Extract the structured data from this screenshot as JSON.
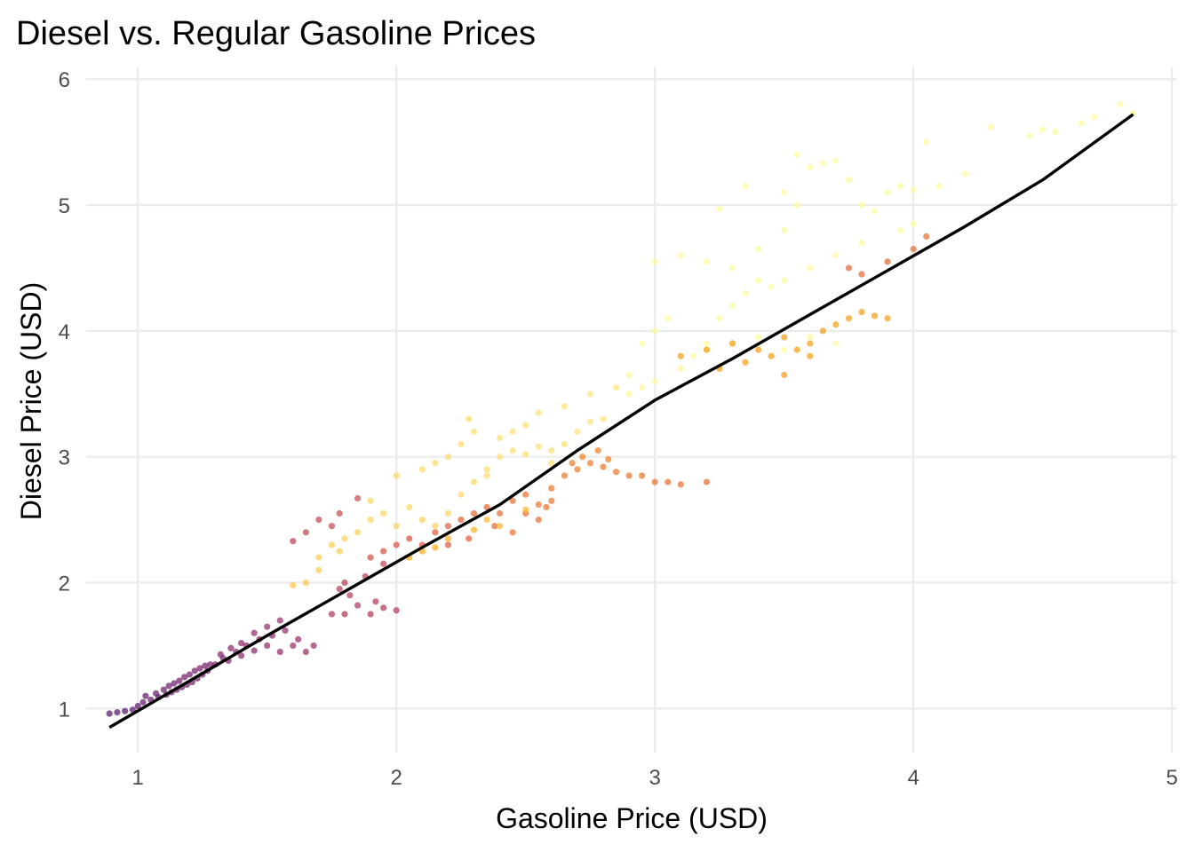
{
  "chart_data": {
    "type": "scatter",
    "title": "Diesel vs. Regular Gasoline Prices",
    "xlabel": "Gasoline Price (USD)",
    "ylabel": "Diesel Price (USD)",
    "xlim": [
      0.8,
      5.02
    ],
    "ylim": [
      0.65,
      6.1
    ],
    "xticks": [
      1,
      2,
      3,
      4,
      5
    ],
    "yticks": [
      1,
      2,
      3,
      4,
      5,
      6
    ],
    "x_tick_labels": [
      "1",
      "2",
      "3",
      "4",
      "5"
    ],
    "y_tick_labels": [
      "1",
      "2",
      "3",
      "4",
      "5",
      "6"
    ],
    "grid": true,
    "legend": "none",
    "colormap": [
      "#420a68",
      "#932667",
      "#dd513a",
      "#fca50a",
      "#fcffa4"
    ],
    "trend_line": {
      "x": [
        0.89,
        1.2,
        1.5,
        1.8,
        2.1,
        2.4,
        2.7,
        3.0,
        3.3,
        3.6,
        3.9,
        4.2,
        4.5,
        4.85
      ],
      "y": [
        0.85,
        1.22,
        1.58,
        1.93,
        2.28,
        2.62,
        3.05,
        3.45,
        3.78,
        4.13,
        4.48,
        4.83,
        5.2,
        5.72
      ]
    },
    "points": [
      [
        0.89,
        0.96,
        0.05
      ],
      [
        0.92,
        0.97,
        0.05
      ],
      [
        0.95,
        0.98,
        0.06
      ],
      [
        0.98,
        0.99,
        0.06
      ],
      [
        1.0,
        1.02,
        0.07
      ],
      [
        1.02,
        1.05,
        0.08
      ],
      [
        1.03,
        1.1,
        0.08
      ],
      [
        1.05,
        1.07,
        0.09
      ],
      [
        1.07,
        1.12,
        0.09
      ],
      [
        1.08,
        1.09,
        0.1
      ],
      [
        1.1,
        1.15,
        0.1
      ],
      [
        1.11,
        1.11,
        0.1
      ],
      [
        1.12,
        1.18,
        0.11
      ],
      [
        1.13,
        1.13,
        0.11
      ],
      [
        1.14,
        1.2,
        0.11
      ],
      [
        1.15,
        1.15,
        0.12
      ],
      [
        1.16,
        1.22,
        0.12
      ],
      [
        1.17,
        1.17,
        0.12
      ],
      [
        1.18,
        1.25,
        0.13
      ],
      [
        1.19,
        1.19,
        0.13
      ],
      [
        1.2,
        1.27,
        0.13
      ],
      [
        1.21,
        1.21,
        0.14
      ],
      [
        1.22,
        1.3,
        0.14
      ],
      [
        1.23,
        1.24,
        0.14
      ],
      [
        1.24,
        1.32,
        0.15
      ],
      [
        1.25,
        1.27,
        0.15
      ],
      [
        1.26,
        1.34,
        0.15
      ],
      [
        1.27,
        1.3,
        0.16
      ],
      [
        1.28,
        1.35,
        0.16
      ],
      [
        1.3,
        1.35,
        0.17
      ],
      [
        1.33,
        1.4,
        0.18
      ],
      [
        1.35,
        1.38,
        0.18
      ],
      [
        1.38,
        1.45,
        0.19
      ],
      [
        1.4,
        1.42,
        0.2
      ],
      [
        1.42,
        1.5,
        0.2
      ],
      [
        1.45,
        1.46,
        0.21
      ],
      [
        1.47,
        1.55,
        0.22
      ],
      [
        1.5,
        1.5,
        0.23
      ],
      [
        1.52,
        1.58,
        0.23
      ],
      [
        1.55,
        1.45,
        0.24
      ],
      [
        1.57,
        1.62,
        0.25
      ],
      [
        1.6,
        1.5,
        0.25
      ],
      [
        1.62,
        1.55,
        0.26
      ],
      [
        1.65,
        1.45,
        0.26
      ],
      [
        1.68,
        1.5,
        0.27
      ],
      [
        1.5,
        1.65,
        0.25
      ],
      [
        1.45,
        1.6,
        0.24
      ],
      [
        1.55,
        1.7,
        0.26
      ],
      [
        1.4,
        1.52,
        0.22
      ],
      [
        1.36,
        1.48,
        0.2
      ],
      [
        1.32,
        1.43,
        0.19
      ],
      [
        1.6,
        2.33,
        0.38
      ],
      [
        1.65,
        2.4,
        0.4
      ],
      [
        1.7,
        2.5,
        0.41
      ],
      [
        1.75,
        2.45,
        0.42
      ],
      [
        1.78,
        2.55,
        0.43
      ],
      [
        1.85,
        2.67,
        0.44
      ],
      [
        1.8,
        2.0,
        0.36
      ],
      [
        1.78,
        1.95,
        0.35
      ],
      [
        1.82,
        1.9,
        0.35
      ],
      [
        1.85,
        1.82,
        0.34
      ],
      [
        1.75,
        1.75,
        0.33
      ],
      [
        1.8,
        1.75,
        0.34
      ],
      [
        1.9,
        1.75,
        0.34
      ],
      [
        1.95,
        1.8,
        0.35
      ],
      [
        2.0,
        1.78,
        0.35
      ],
      [
        1.92,
        1.85,
        0.35
      ],
      [
        1.88,
        2.05,
        0.37
      ],
      [
        1.95,
        2.15,
        0.4
      ],
      [
        1.9,
        2.2,
        0.45
      ],
      [
        1.95,
        2.25,
        0.47
      ],
      [
        2.0,
        2.3,
        0.48
      ],
      [
        2.05,
        2.35,
        0.49
      ],
      [
        2.1,
        2.3,
        0.5
      ],
      [
        2.15,
        2.4,
        0.52
      ],
      [
        2.2,
        2.45,
        0.53
      ],
      [
        2.25,
        2.5,
        0.54
      ],
      [
        2.3,
        2.55,
        0.55
      ],
      [
        2.35,
        2.6,
        0.56
      ],
      [
        2.4,
        2.55,
        0.57
      ],
      [
        2.45,
        2.65,
        0.58
      ],
      [
        2.5,
        2.7,
        0.59
      ],
      [
        2.55,
        2.62,
        0.6
      ],
      [
        2.6,
        2.75,
        0.6
      ],
      [
        2.65,
        2.85,
        0.61
      ],
      [
        2.7,
        2.9,
        0.62
      ],
      [
        2.75,
        2.95,
        0.62
      ],
      [
        2.8,
        2.92,
        0.61
      ],
      [
        2.85,
        2.88,
        0.6
      ],
      [
        2.9,
        2.85,
        0.6
      ],
      [
        2.95,
        2.85,
        0.59
      ],
      [
        3.0,
        2.8,
        0.59
      ],
      [
        3.05,
        2.8,
        0.58
      ],
      [
        3.1,
        2.78,
        0.58
      ],
      [
        3.2,
        2.8,
        0.57
      ],
      [
        2.45,
        2.4,
        0.58
      ],
      [
        2.55,
        2.5,
        0.59
      ],
      [
        2.6,
        2.65,
        0.6
      ],
      [
        2.2,
        2.3,
        0.52
      ],
      [
        2.28,
        2.35,
        0.53
      ],
      [
        2.38,
        2.45,
        0.56
      ],
      [
        2.5,
        2.55,
        0.58
      ],
      [
        2.58,
        2.6,
        0.59
      ],
      [
        2.68,
        2.95,
        0.62
      ],
      [
        2.72,
        3.0,
        0.63
      ],
      [
        2.78,
        3.05,
        0.63
      ],
      [
        2.82,
        2.98,
        0.62
      ],
      [
        2.1,
        2.25,
        0.76
      ],
      [
        2.2,
        2.35,
        0.77
      ],
      [
        2.3,
        2.42,
        0.78
      ],
      [
        2.35,
        2.5,
        0.8
      ],
      [
        2.4,
        2.45,
        0.79
      ],
      [
        2.5,
        2.58,
        0.8
      ],
      [
        2.05,
        2.2,
        0.75
      ],
      [
        2.15,
        2.28,
        0.76
      ],
      [
        1.7,
        2.2,
        0.85
      ],
      [
        1.75,
        2.3,
        0.86
      ],
      [
        1.8,
        2.35,
        0.87
      ],
      [
        1.85,
        2.4,
        0.87
      ],
      [
        1.9,
        2.5,
        0.88
      ],
      [
        1.95,
        2.55,
        0.88
      ],
      [
        2.0,
        2.45,
        0.87
      ],
      [
        2.05,
        2.6,
        0.88
      ],
      [
        2.1,
        2.5,
        0.87
      ],
      [
        2.15,
        2.45,
        0.87
      ],
      [
        2.2,
        2.55,
        0.88
      ],
      [
        2.25,
        2.7,
        0.89
      ],
      [
        2.3,
        2.8,
        0.89
      ],
      [
        2.35,
        2.9,
        0.9
      ],
      [
        2.4,
        3.0,
        0.9
      ],
      [
        2.45,
        3.05,
        0.91
      ],
      [
        2.5,
        3.02,
        0.91
      ],
      [
        2.55,
        3.08,
        0.91
      ],
      [
        2.6,
        3.05,
        0.91
      ],
      [
        2.65,
        3.1,
        0.92
      ],
      [
        2.7,
        3.2,
        0.92
      ],
      [
        2.75,
        3.28,
        0.93
      ],
      [
        2.8,
        3.3,
        0.93
      ],
      [
        2.1,
        2.9,
        0.89
      ],
      [
        2.15,
        2.95,
        0.89
      ],
      [
        2.2,
        3.0,
        0.9
      ],
      [
        2.25,
        3.1,
        0.9
      ],
      [
        2.3,
        3.2,
        0.91
      ],
      [
        2.35,
        2.85,
        0.9
      ],
      [
        1.65,
        2.0,
        0.84
      ],
      [
        1.7,
        2.1,
        0.85
      ],
      [
        1.78,
        2.25,
        0.86
      ],
      [
        1.6,
        1.98,
        0.84
      ],
      [
        2.45,
        3.2,
        0.91
      ],
      [
        2.55,
        3.35,
        0.92
      ],
      [
        2.65,
        3.4,
        0.92
      ],
      [
        2.75,
        3.5,
        0.93
      ],
      [
        2.85,
        3.55,
        0.93
      ],
      [
        2.0,
        2.85,
        0.88
      ],
      [
        1.9,
        2.65,
        0.88
      ],
      [
        2.28,
        3.3,
        0.9
      ],
      [
        2.4,
        3.15,
        0.91
      ],
      [
        2.5,
        3.25,
        0.91
      ],
      [
        2.6,
        2.95,
        0.91
      ],
      [
        2.9,
        3.5,
        0.98
      ],
      [
        2.95,
        3.55,
        0.98
      ],
      [
        3.0,
        3.6,
        0.99
      ],
      [
        2.95,
        3.9,
        0.99
      ],
      [
        3.0,
        4.0,
        0.99
      ],
      [
        3.05,
        4.1,
        0.99
      ],
      [
        2.9,
        3.65,
        0.98
      ],
      [
        3.1,
        3.7,
        0.98
      ],
      [
        3.15,
        3.8,
        0.99
      ],
      [
        3.2,
        3.9,
        0.99
      ],
      [
        3.25,
        4.1,
        0.99
      ],
      [
        3.3,
        4.2,
        0.99
      ],
      [
        3.35,
        4.3,
        0.99
      ],
      [
        3.4,
        4.4,
        0.99
      ],
      [
        3.45,
        4.35,
        0.99
      ],
      [
        3.5,
        4.4,
        0.99
      ],
      [
        3.6,
        4.5,
        0.99
      ],
      [
        3.7,
        4.6,
        0.99
      ],
      [
        3.8,
        4.7,
        0.99
      ],
      [
        3.0,
        4.55,
        0.99
      ],
      [
        3.1,
        4.6,
        0.99
      ],
      [
        3.2,
        4.55,
        0.99
      ],
      [
        3.3,
        4.5,
        0.99
      ],
      [
        3.4,
        4.65,
        0.99
      ],
      [
        3.5,
        4.8,
        0.99
      ],
      [
        3.25,
        4.97,
        0.99
      ],
      [
        3.35,
        5.15,
        0.99
      ],
      [
        3.5,
        5.1,
        0.99
      ],
      [
        3.55,
        5.0,
        0.99
      ],
      [
        3.6,
        5.3,
        0.99
      ],
      [
        3.65,
        5.33,
        0.99
      ],
      [
        3.7,
        5.35,
        0.99
      ],
      [
        3.55,
        5.4,
        0.99
      ],
      [
        3.75,
        5.2,
        0.99
      ],
      [
        3.8,
        5.0,
        0.99
      ],
      [
        3.85,
        4.95,
        0.99
      ],
      [
        3.9,
        5.1,
        0.99
      ],
      [
        3.95,
        5.15,
        0.99
      ],
      [
        4.0,
        5.12,
        0.99
      ],
      [
        4.05,
        5.5,
        0.99
      ],
      [
        4.1,
        5.15,
        0.99
      ],
      [
        4.2,
        5.25,
        0.99
      ],
      [
        4.3,
        5.62,
        0.99
      ],
      [
        4.5,
        5.6,
        0.99
      ],
      [
        4.45,
        5.55,
        0.99
      ],
      [
        4.55,
        5.58,
        0.99
      ],
      [
        4.65,
        5.65,
        0.99
      ],
      [
        4.7,
        5.7,
        0.99
      ],
      [
        4.8,
        5.8,
        0.99
      ],
      [
        4.85,
        5.73,
        0.99
      ],
      [
        4.0,
        4.85,
        0.99
      ],
      [
        3.95,
        4.8,
        0.99
      ],
      [
        3.2,
        3.85,
        0.99
      ],
      [
        3.3,
        3.9,
        0.99
      ],
      [
        3.4,
        3.95,
        0.99
      ],
      [
        3.5,
        3.85,
        0.99
      ],
      [
        3.6,
        3.95,
        0.99
      ],
      [
        3.7,
        3.9,
        0.99
      ],
      [
        3.1,
        3.8,
        0.72
      ],
      [
        3.2,
        3.85,
        0.72
      ],
      [
        3.3,
        3.9,
        0.72
      ],
      [
        3.4,
        3.85,
        0.72
      ],
      [
        3.5,
        3.95,
        0.72
      ],
      [
        3.55,
        3.85,
        0.72
      ],
      [
        3.6,
        3.9,
        0.72
      ],
      [
        3.65,
        4.0,
        0.72
      ],
      [
        3.7,
        4.05,
        0.72
      ],
      [
        3.75,
        4.1,
        0.72
      ],
      [
        3.8,
        4.15,
        0.72
      ],
      [
        3.85,
        4.12,
        0.72
      ],
      [
        3.9,
        4.1,
        0.72
      ],
      [
        3.45,
        3.8,
        0.72
      ],
      [
        3.35,
        3.75,
        0.72
      ],
      [
        3.25,
        3.7,
        0.72
      ],
      [
        3.5,
        3.65,
        0.72
      ],
      [
        3.6,
        3.8,
        0.72
      ],
      [
        3.75,
        4.5,
        0.55
      ],
      [
        3.8,
        4.45,
        0.55
      ],
      [
        3.9,
        4.55,
        0.56
      ],
      [
        4.0,
        4.65,
        0.57
      ],
      [
        4.05,
        4.75,
        0.57
      ]
    ]
  }
}
